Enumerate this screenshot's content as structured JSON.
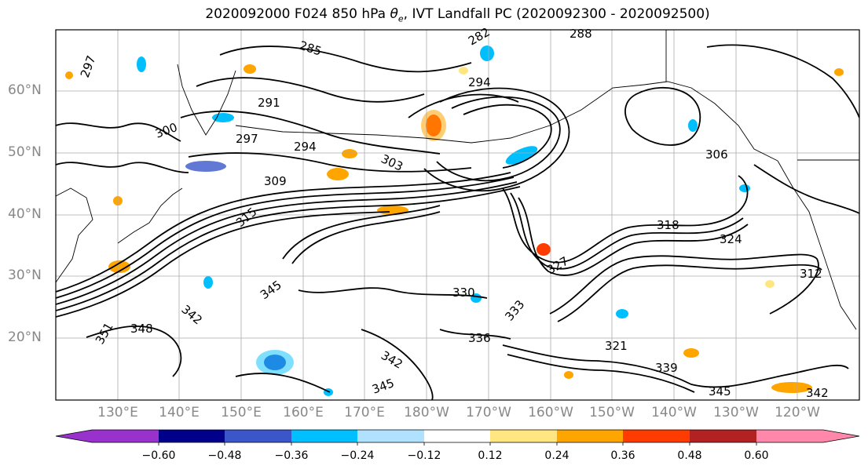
{
  "title": {
    "prefix": "2020092000 F024 850 hPa ",
    "symbol": "θ",
    "subscript": "e",
    "suffix": ", IVT Landfall PC (2020092300 - 2020092500)"
  },
  "map": {
    "projection": "PlateCarree",
    "lon_range": [
      120,
      250
    ],
    "lat_range": [
      10,
      70
    ],
    "lat_labels": [
      "20°N",
      "30°N",
      "40°N",
      "50°N",
      "60°N"
    ],
    "lon_labels": [
      "130°E",
      "140°E",
      "150°E",
      "160°E",
      "170°E",
      "180°W",
      "170°W",
      "160°W",
      "150°W",
      "140°W",
      "130°W",
      "120°W"
    ],
    "gridlines": true,
    "label_color": "#888888"
  },
  "contour_labels": [
    "285",
    "282",
    "288",
    "294",
    "291",
    "297",
    "297",
    "300",
    "294",
    "303",
    "306",
    "309",
    "312",
    "315",
    "318",
    "321",
    "324",
    "327",
    "330",
    "333",
    "336",
    "339",
    "342",
    "345",
    "348",
    "351",
    "342",
    "345",
    "342",
    "345"
  ],
  "colorbar": {
    "ticks": [
      "−0.60",
      "−0.48",
      "−0.36",
      "−0.24",
      "−0.12",
      "0.12",
      "0.24",
      "0.36",
      "0.48",
      "0.60"
    ],
    "colors": [
      "#9932CC",
      "#00008B",
      "#3A56C9",
      "#00BFFF",
      "#B0E2FF",
      "#FFFFFF",
      "#FFE680",
      "#FFA500",
      "#FF3C00",
      "#B22222",
      "#FF88AA"
    ],
    "extend": "both"
  }
}
